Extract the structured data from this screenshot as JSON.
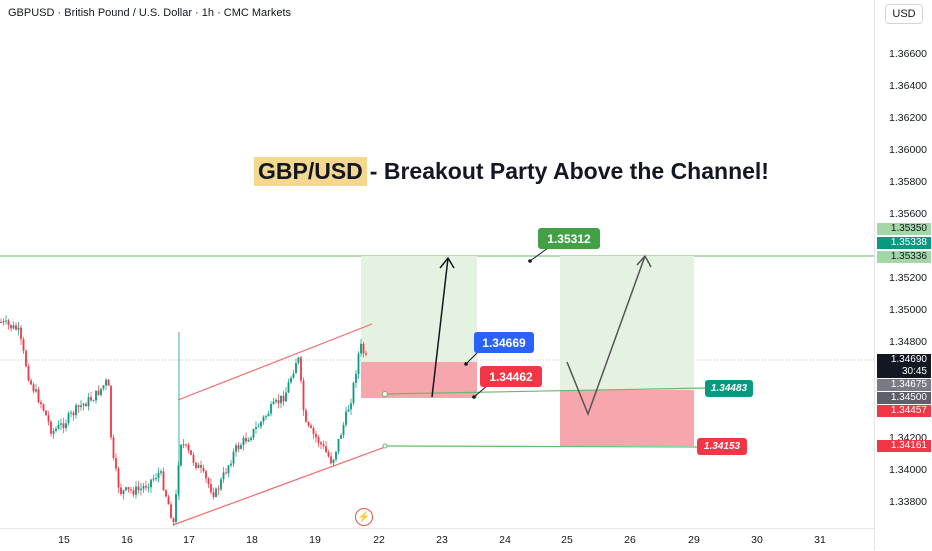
{
  "header": {
    "symbol_info": "GBPUSD · British Pound / U.S. Dollar · 1h · CMC Markets",
    "currency": "USD"
  },
  "title": {
    "highlight": "GBP/USD",
    "rest": "- Breakout Party Above the Channel!"
  },
  "colors": {
    "up": "#089981",
    "down": "#f23645",
    "target_zone": "#e3f2e1",
    "stop_zone": "#f7a6ae",
    "channel_line": "#f26b6b",
    "level_line": "#66bb6a"
  },
  "callouts": {
    "target": "1.35312",
    "entry": "1.34669",
    "stop": "1.34462",
    "level_small": "1.34483",
    "stop_small": "1.34153"
  },
  "price_axis": {
    "labels": [
      "1.36600",
      "1.36400",
      "1.36200",
      "1.36000",
      "1.35800",
      "1.35600",
      "1.35200",
      "1.35000",
      "1.34800",
      "1.34200",
      "1.34000",
      "1.33800"
    ],
    "tags": {
      "t1": "1.35350",
      "t2": "1.35338",
      "t3": "1.35336",
      "current": "1.34690",
      "countdown": "30:45",
      "t4": "1.34675",
      "t5": "1.34500",
      "t6": "1.34457",
      "t7": "1.34161"
    }
  },
  "time_axis": {
    "labels": [
      "15",
      "16",
      "17",
      "18",
      "19",
      "22",
      "23",
      "24",
      "25",
      "26",
      "29",
      "30",
      "31"
    ]
  },
  "chart_data": {
    "type": "candlestick",
    "symbol": "GBPUSD",
    "interval": "1h",
    "ylim": [
      1.337,
      1.367
    ],
    "annotations": {
      "target_price": 1.35312,
      "entry_price": 1.34669,
      "stop_price": 1.34462,
      "support_level": 1.34483,
      "lower_level": 1.34153
    }
  }
}
